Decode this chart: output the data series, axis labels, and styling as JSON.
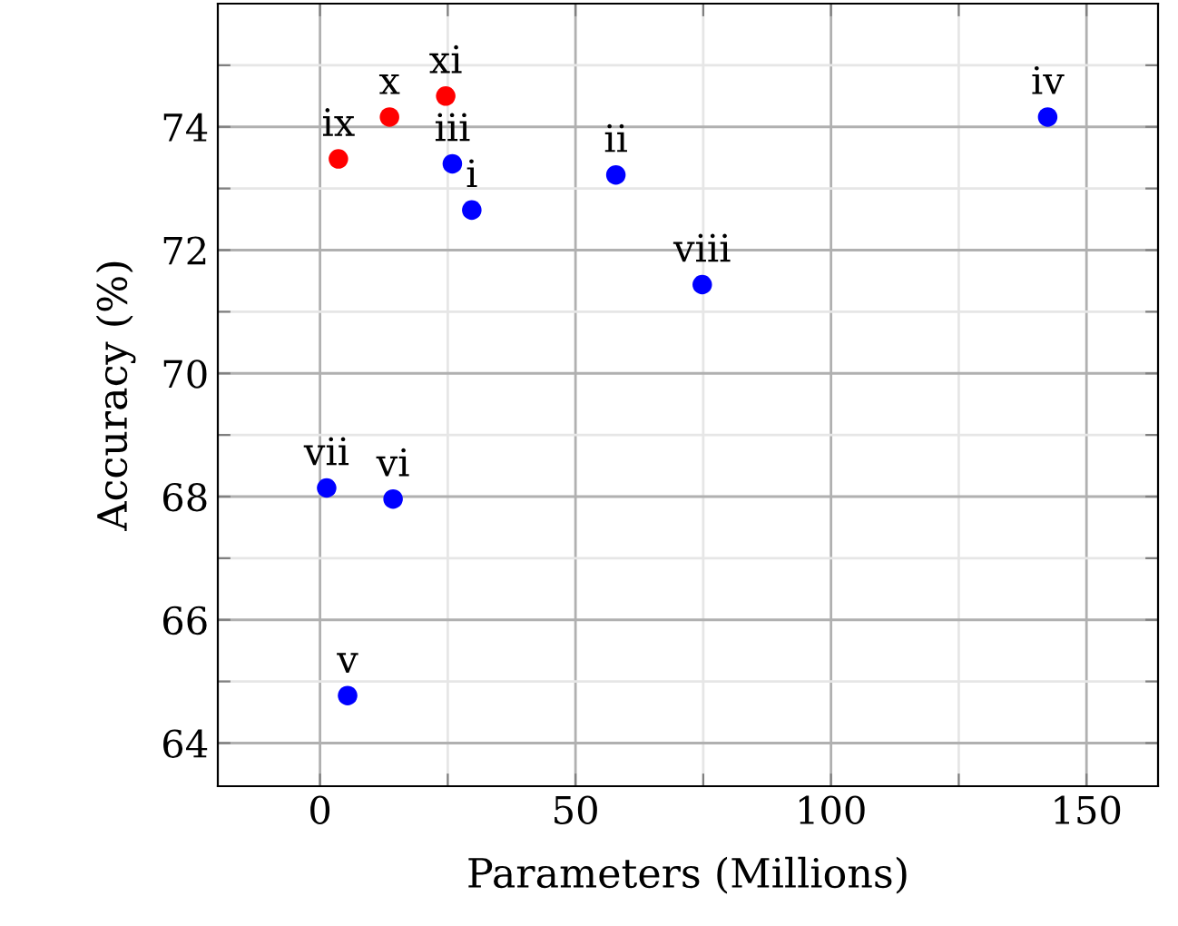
{
  "chart_data": {
    "type": "scatter",
    "xlabel": "Parameters (Millions)",
    "ylabel": "Accuracy (%)",
    "xlim": [
      -20,
      164
    ],
    "ylim": [
      63.3,
      76
    ],
    "xticks": [
      0,
      {
        "value": 25,
        "label": null
      },
      50,
      {
        "value": 75,
        "label": null
      },
      100,
      {
        "value": 125,
        "label": null
      },
      150
    ],
    "yticks": [
      64,
      {
        "value": 65,
        "label": null
      },
      66,
      {
        "value": 67,
        "label": null
      },
      68,
      {
        "value": 69,
        "label": null
      },
      70,
      {
        "value": 71,
        "label": null
      },
      72,
      {
        "value": 73,
        "label": null
      },
      74,
      {
        "value": 75,
        "label": null
      }
    ],
    "grid": true,
    "marker": "circle",
    "series": [
      {
        "color": "#0000ff",
        "x": [
          29.7,
          57.9,
          25.9,
          142.4,
          5.4,
          14.3,
          1.3,
          74.8
        ],
        "values": [
          72.65,
          73.22,
          73.4,
          74.16,
          64.77,
          67.96,
          68.14,
          71.44
        ]
      },
      {
        "color": "#ff0000",
        "x": [
          3.6,
          13.6,
          24.6
        ],
        "values": [
          73.48,
          74.16,
          74.5
        ]
      }
    ],
    "annotations": [
      {
        "text": "i",
        "x": 29.7,
        "y": 72.65
      },
      {
        "text": "ii",
        "x": 57.9,
        "y": 73.22
      },
      {
        "text": "iii",
        "x": 25.9,
        "y": 73.4
      },
      {
        "text": "iv",
        "x": 142.4,
        "y": 74.16
      },
      {
        "text": "v",
        "x": 5.4,
        "y": 64.77
      },
      {
        "text": "vi",
        "x": 14.3,
        "y": 67.96
      },
      {
        "text": "vii",
        "x": 1.3,
        "y": 68.14
      },
      {
        "text": "viii",
        "x": 74.8,
        "y": 71.44
      },
      {
        "text": "ix",
        "x": 3.6,
        "y": 73.48
      },
      {
        "text": "x",
        "x": 13.6,
        "y": 74.16
      },
      {
        "text": "xi",
        "x": 24.6,
        "y": 74.5
      }
    ]
  }
}
